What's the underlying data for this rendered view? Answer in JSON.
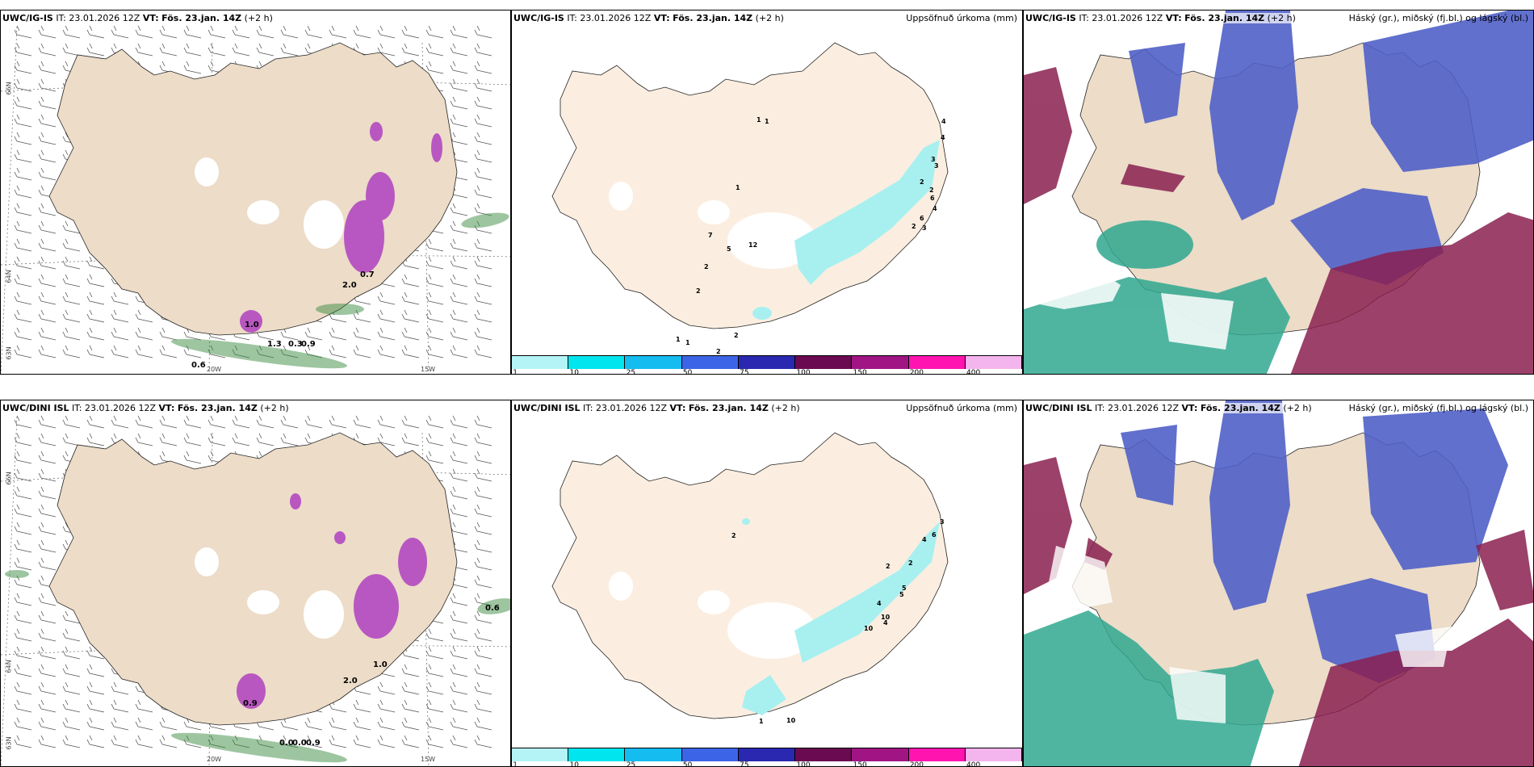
{
  "rows": [
    {
      "model": "UWC/IG-IS",
      "it_label": "IT:",
      "it_value": "23.01.2026 12Z",
      "vt_label": "VT:",
      "vt_value": "Fös. 23.jan. 14Z",
      "lead": "(+2 h)",
      "wind_values": [
        "1.3",
        "0.3",
        "0.9",
        "0.6",
        "1.0",
        "2.0",
        "0.7"
      ],
      "precip_values": [
        "4",
        "1",
        "1",
        "4",
        "3",
        "3",
        "2",
        "2",
        "6",
        "4",
        "6",
        "2",
        "3",
        "1",
        "7",
        "12",
        "5",
        "2",
        "2",
        "2",
        "1",
        "1",
        "2"
      ]
    },
    {
      "model": "UWC/DINI ISL",
      "it_label": "IT:",
      "it_value": "23.01.2026 12Z",
      "vt_label": "VT:",
      "vt_value": "Fös. 23.jan. 14Z",
      "lead": "(+2 h)",
      "wind_values": [
        "0.6",
        "1.0",
        "2.0",
        "0.9",
        "0.0",
        "0.0",
        "0.9"
      ],
      "precip_values": [
        "3",
        "6",
        "2",
        "4",
        "2",
        "2",
        "5",
        "5",
        "4",
        "10",
        "4",
        "10",
        "1",
        "10"
      ]
    }
  ],
  "precip_title": "Uppsöfnuð úrkoma (mm)",
  "cloud_title": "Háský (gr.), miðský (fj.bl.) og lágský (bl.)",
  "lat_labels": [
    "66N",
    "64N",
    "63N"
  ],
  "lon_labels": [
    "20W",
    "15W"
  ],
  "colorbar": {
    "ticks": [
      "1",
      "10",
      "25",
      "50",
      "75",
      "100",
      "150",
      "200",
      "400"
    ],
    "colors": [
      "#b4f4f6",
      "#00e5ee",
      "#14bcf0",
      "#3c64e6",
      "#2a28b0",
      "#6a0a50",
      "#a01484",
      "#ff14b0",
      "#f4b4ee"
    ]
  },
  "palette": {
    "land": "#ecdcc8",
    "land_pale": "#fbeee0",
    "sea": "#ffffff",
    "precip_light": "#a8f0f0",
    "magenta": "#b040c0",
    "high_cloud": "#5060c8",
    "mid_cloud": "#8a2050",
    "low_cloud": "#30a890"
  }
}
